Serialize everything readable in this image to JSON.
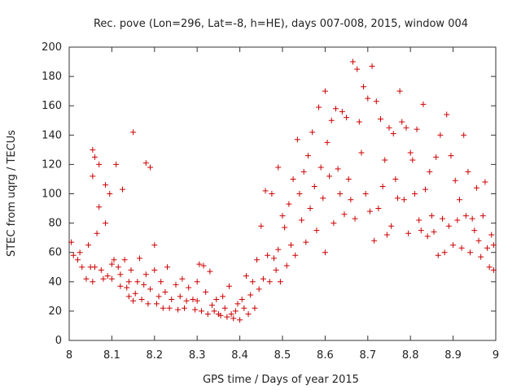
{
  "chart_data": {
    "type": "scatter",
    "title": "Rec. pove (Lon=296, Lat=-8, h=HE), days 007-008, 2015, window 004",
    "xlabel": "GPS time / Days of year 2015",
    "ylabel": "STEC from uqrg / TECUs",
    "xlim": [
      8,
      9
    ],
    "ylim": [
      0,
      200
    ],
    "xticks": [
      "8",
      "8.1",
      "8.2",
      "8.3",
      "8.4",
      "8.5",
      "8.6",
      "8.7",
      "8.8",
      "8.9",
      "9"
    ],
    "yticks": [
      "0",
      "20",
      "40",
      "60",
      "80",
      "100",
      "120",
      "140",
      "160",
      "180",
      "200"
    ],
    "marker": "+",
    "series": [
      {
        "name": "STEC",
        "color": "#cc0000",
        "points": [
          [
            8.005,
            67
          ],
          [
            8.01,
            58
          ],
          [
            8.02,
            55
          ],
          [
            8.025,
            60
          ],
          [
            8.03,
            50
          ],
          [
            8.04,
            42
          ],
          [
            8.045,
            65
          ],
          [
            8.05,
            50
          ],
          [
            8.055,
            40
          ],
          [
            8.06,
            50
          ],
          [
            8.055,
            130
          ],
          [
            8.06,
            125
          ],
          [
            8.055,
            112
          ],
          [
            8.065,
            73
          ],
          [
            8.07,
            120
          ],
          [
            8.07,
            91
          ],
          [
            8.075,
            48
          ],
          [
            8.08,
            42
          ],
          [
            8.085,
            106
          ],
          [
            8.085,
            80
          ],
          [
            8.09,
            44
          ],
          [
            8.095,
            100
          ],
          [
            8.1,
            52
          ],
          [
            8.1,
            42
          ],
          [
            8.105,
            55
          ],
          [
            8.11,
            120
          ],
          [
            8.115,
            50
          ],
          [
            8.12,
            37
          ],
          [
            8.12,
            45
          ],
          [
            8.125,
            103
          ],
          [
            8.13,
            55
          ],
          [
            8.135,
            36
          ],
          [
            8.14,
            30
          ],
          [
            8.14,
            40
          ],
          [
            8.145,
            48
          ],
          [
            8.15,
            142
          ],
          [
            8.15,
            27
          ],
          [
            8.155,
            32
          ],
          [
            8.16,
            40
          ],
          [
            8.165,
            56
          ],
          [
            8.17,
            28
          ],
          [
            8.175,
            38
          ],
          [
            8.18,
            121
          ],
          [
            8.18,
            45
          ],
          [
            8.185,
            25
          ],
          [
            8.19,
            118
          ],
          [
            8.19,
            35
          ],
          [
            8.2,
            65
          ],
          [
            8.2,
            48
          ],
          [
            8.205,
            25
          ],
          [
            8.21,
            30
          ],
          [
            8.215,
            40
          ],
          [
            8.22,
            22
          ],
          [
            8.225,
            33
          ],
          [
            8.23,
            50
          ],
          [
            8.235,
            22
          ],
          [
            8.24,
            28
          ],
          [
            8.25,
            38
          ],
          [
            8.255,
            21
          ],
          [
            8.26,
            30
          ],
          [
            8.265,
            42
          ],
          [
            8.27,
            22
          ],
          [
            8.275,
            27
          ],
          [
            8.28,
            36
          ],
          [
            8.29,
            28
          ],
          [
            8.295,
            21
          ],
          [
            8.3,
            40
          ],
          [
            8.3,
            27
          ],
          [
            8.305,
            52
          ],
          [
            8.31,
            20
          ],
          [
            8.315,
            51
          ],
          [
            8.32,
            33
          ],
          [
            8.325,
            18
          ],
          [
            8.33,
            47
          ],
          [
            8.335,
            24
          ],
          [
            8.34,
            20
          ],
          [
            8.345,
            28
          ],
          [
            8.35,
            18
          ],
          [
            8.355,
            17
          ],
          [
            8.36,
            30
          ],
          [
            8.365,
            22
          ],
          [
            8.37,
            16
          ],
          [
            8.375,
            37
          ],
          [
            8.38,
            18
          ],
          [
            8.385,
            15
          ],
          [
            8.39,
            20
          ],
          [
            8.395,
            25
          ],
          [
            8.4,
            14
          ],
          [
            8.405,
            28
          ],
          [
            8.41,
            22
          ],
          [
            8.415,
            44
          ],
          [
            8.42,
            18
          ],
          [
            8.425,
            31
          ],
          [
            8.43,
            40
          ],
          [
            8.435,
            22
          ],
          [
            8.44,
            55
          ],
          [
            8.445,
            35
          ],
          [
            8.45,
            78
          ],
          [
            8.455,
            42
          ],
          [
            8.46,
            102
          ],
          [
            8.465,
            58
          ],
          [
            8.47,
            40
          ],
          [
            8.475,
            100
          ],
          [
            8.48,
            56
          ],
          [
            8.485,
            48
          ],
          [
            8.49,
            118
          ],
          [
            8.49,
            62
          ],
          [
            8.495,
            40
          ],
          [
            8.5,
            85
          ],
          [
            8.505,
            77
          ],
          [
            8.51,
            51
          ],
          [
            8.515,
            93
          ],
          [
            8.52,
            65
          ],
          [
            8.525,
            110
          ],
          [
            8.53,
            58
          ],
          [
            8.535,
            137
          ],
          [
            8.54,
            100
          ],
          [
            8.545,
            82
          ],
          [
            8.55,
            115
          ],
          [
            8.555,
            67
          ],
          [
            8.56,
            126
          ],
          [
            8.565,
            90
          ],
          [
            8.57,
            142
          ],
          [
            8.575,
            105
          ],
          [
            8.58,
            75
          ],
          [
            8.585,
            159
          ],
          [
            8.59,
            118
          ],
          [
            8.595,
            97
          ],
          [
            8.6,
            170
          ],
          [
            8.6,
            60
          ],
          [
            8.605,
            135
          ],
          [
            8.61,
            112
          ],
          [
            8.615,
            150
          ],
          [
            8.62,
            80
          ],
          [
            8.625,
            158
          ],
          [
            8.63,
            117
          ],
          [
            8.635,
            100
          ],
          [
            8.64,
            156
          ],
          [
            8.645,
            86
          ],
          [
            8.65,
            152
          ],
          [
            8.655,
            110
          ],
          [
            8.66,
            96
          ],
          [
            8.665,
            190
          ],
          [
            8.67,
            83
          ],
          [
            8.675,
            185
          ],
          [
            8.68,
            149
          ],
          [
            8.685,
            128
          ],
          [
            8.69,
            173
          ],
          [
            8.695,
            100
          ],
          [
            8.7,
            165
          ],
          [
            8.705,
            88
          ],
          [
            8.71,
            187
          ],
          [
            8.715,
            68
          ],
          [
            8.72,
            163
          ],
          [
            8.725,
            90
          ],
          [
            8.73,
            151
          ],
          [
            8.735,
            105
          ],
          [
            8.74,
            123
          ],
          [
            8.745,
            72
          ],
          [
            8.75,
            145
          ],
          [
            8.755,
            78
          ],
          [
            8.76,
            141
          ],
          [
            8.765,
            110
          ],
          [
            8.77,
            97
          ],
          [
            8.775,
            170
          ],
          [
            8.78,
            149
          ],
          [
            8.785,
            96
          ],
          [
            8.79,
            145
          ],
          [
            8.795,
            73
          ],
          [
            8.8,
            128
          ],
          [
            8.805,
            123
          ],
          [
            8.81,
            100
          ],
          [
            8.815,
            144
          ],
          [
            8.82,
            82
          ],
          [
            8.825,
            75
          ],
          [
            8.83,
            161
          ],
          [
            8.835,
            103
          ],
          [
            8.84,
            71
          ],
          [
            8.845,
            115
          ],
          [
            8.85,
            85
          ],
          [
            8.855,
            74
          ],
          [
            8.86,
            125
          ],
          [
            8.865,
            58
          ],
          [
            8.87,
            140
          ],
          [
            8.875,
            83
          ],
          [
            8.88,
            60
          ],
          [
            8.885,
            154
          ],
          [
            8.89,
            78
          ],
          [
            8.895,
            126
          ],
          [
            8.9,
            65
          ],
          [
            8.905,
            109
          ],
          [
            8.91,
            82
          ],
          [
            8.915,
            96
          ],
          [
            8.92,
            63
          ],
          [
            8.925,
            140
          ],
          [
            8.93,
            85
          ],
          [
            8.935,
            115
          ],
          [
            8.94,
            60
          ],
          [
            8.945,
            83
          ],
          [
            8.95,
            75
          ],
          [
            8.955,
            104
          ],
          [
            8.96,
            68
          ],
          [
            8.965,
            57
          ],
          [
            8.97,
            85
          ],
          [
            8.975,
            108
          ],
          [
            8.98,
            63
          ],
          [
            8.985,
            50
          ],
          [
            8.99,
            72
          ],
          [
            8.995,
            65
          ],
          [
            8.995,
            48
          ]
        ]
      }
    ]
  }
}
